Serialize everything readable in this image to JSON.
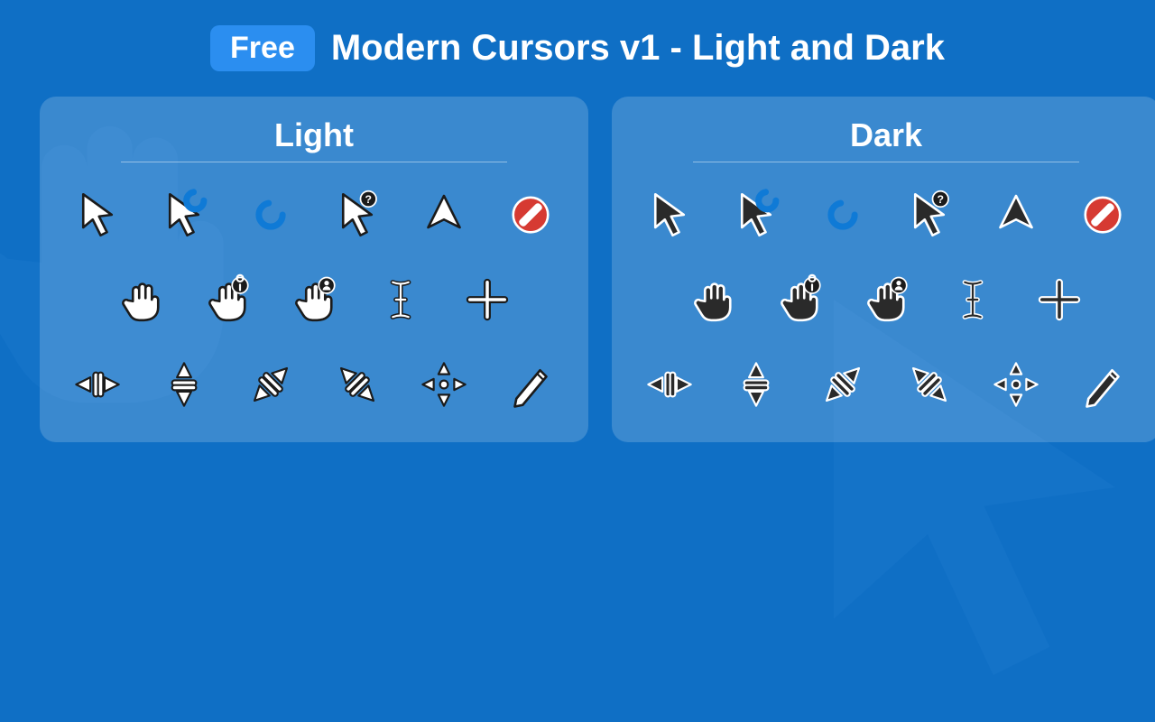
{
  "header": {
    "badge": "Free",
    "title": "Modern Cursors v1 - Light and Dark",
    "badge_bg": "#2b8ef0",
    "text_color": "#ffffff"
  },
  "page": {
    "background_color": "#0f6fc5",
    "panel_bg": "rgba(255,255,255,0.18)",
    "panel_radius": 18
  },
  "variants": [
    {
      "name": "Light",
      "fill": "#ffffff",
      "stroke": "#1b1b1b",
      "accent_ring": "#0f7ad6",
      "no_color": "#d63a32",
      "badge_bg": "#1b1b1b",
      "badge_fg": "#ffffff"
    },
    {
      "name": "Dark",
      "fill": "#2a2a2a",
      "stroke": "#ffffff",
      "accent_ring": "#0f7ad6",
      "no_color": "#d63a32",
      "badge_bg": "#1b1b1b",
      "badge_fg": "#ffffff"
    }
  ],
  "cursor_rows": [
    [
      "arrow",
      "arrow-busy",
      "busy-ring",
      "arrow-help",
      "arrow-up",
      "forbidden"
    ],
    [
      "hand",
      "hand-pin",
      "hand-person",
      "text-ibeam",
      "crosshair"
    ],
    [
      "resize-ew",
      "resize-ns",
      "resize-nesw",
      "resize-nwse",
      "move-all",
      "pen"
    ]
  ]
}
